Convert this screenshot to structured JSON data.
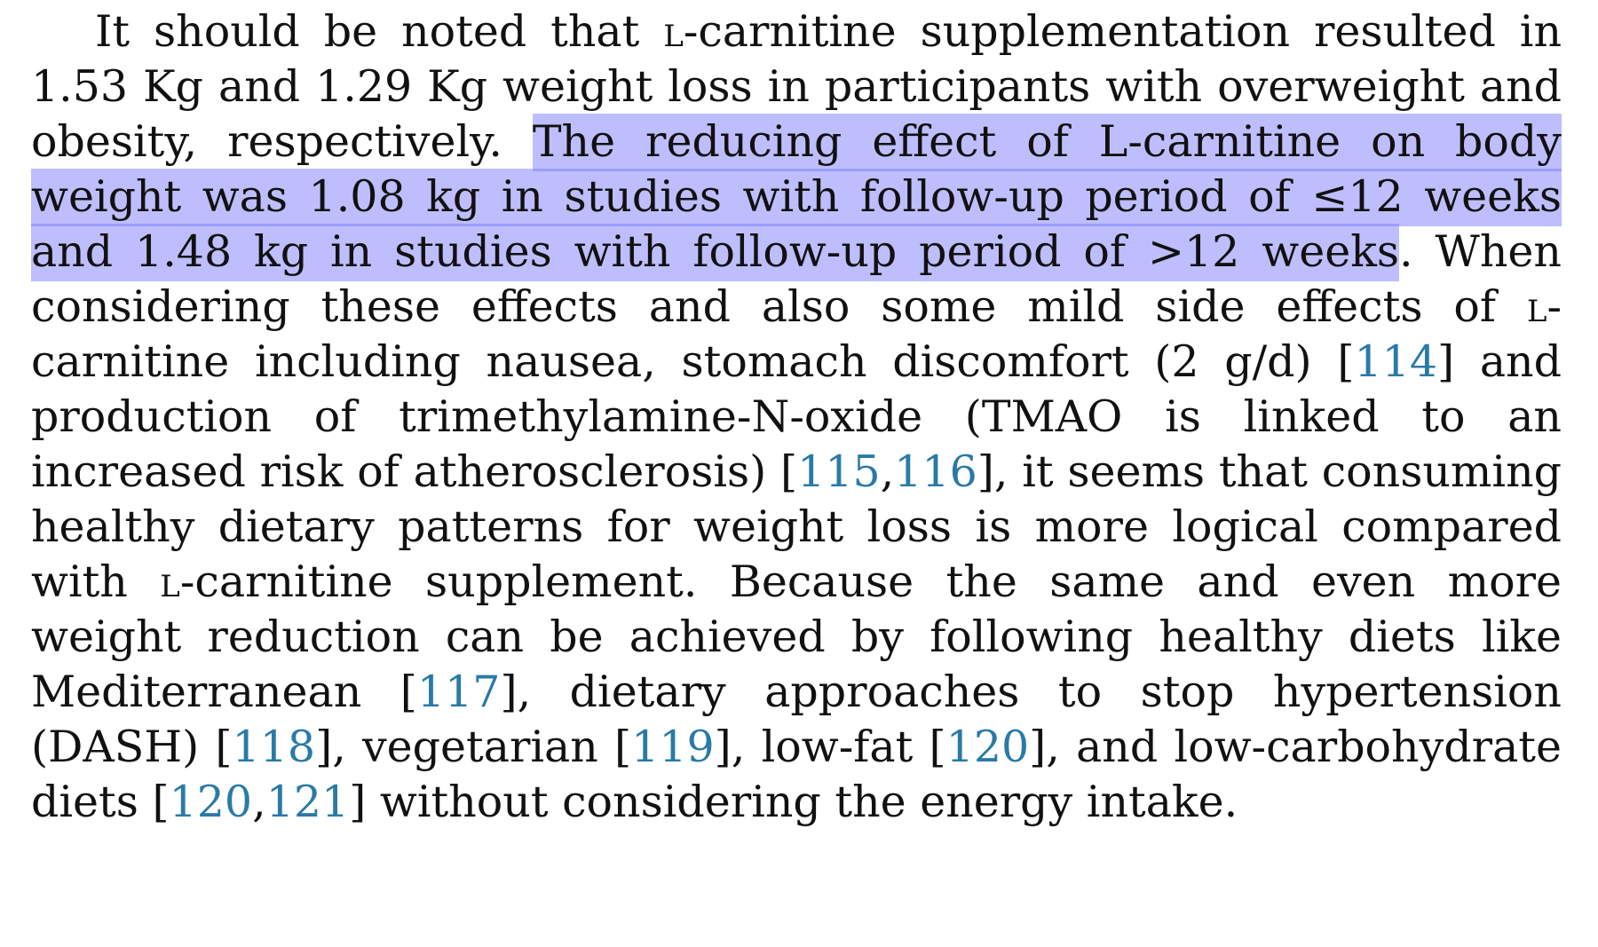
{
  "paragraph": {
    "lines": [
      {
        "t1": "It should be noted that ",
        "t2": "l",
        "t3": "-carnitine supplementation resulted in"
      },
      {
        "text": "1.53 Kg and 1.29 Kg weight loss in participants with overweight and"
      },
      {
        "plain": "obesity, respectively. ",
        "highlight": "The reducing effect of L-carnitine on body"
      },
      {
        "highlight": "weight was 1.08 kg in studies with follow-up period of ≤12 weeks"
      },
      {
        "highlight": "and 1.48 kg in studies with follow-up period of >12 weeks",
        "plain": ". When"
      },
      {
        "t1": "considering these effects and also some mild side effects of ",
        "t2": "l",
        "t3": "-"
      },
      {
        "pre": "carnitine including nausea, stomach discomfort (2 g/d) [",
        "ref1": "114",
        "post": "] and"
      },
      {
        "text": "production of trimethylamine-N-oxide (TMAO is linked to an"
      },
      {
        "pre": "increased risk of atherosclerosis) [",
        "ref1": "115",
        "sep": ",",
        "ref2": "116",
        "post": "], it seems that consuming"
      },
      {
        "text": "healthy dietary patterns for weight loss is more logical compared"
      },
      {
        "t1": "with ",
        "t2": "l",
        "t3": "-carnitine supplement. Because the same and even more"
      },
      {
        "text": "weight reduction can be achieved by following healthy diets like"
      },
      {
        "pre": "Mediterranean [",
        "ref1": "117",
        "post": "], dietary approaches to stop hypertension"
      },
      {
        "pre": "(DASH) [",
        "ref1": "118",
        "mid1": "], vegetarian [",
        "ref2": "119",
        "mid2": "], low-fat [",
        "ref3": "120",
        "post": "], and low-carbohydrate"
      },
      {
        "pre": "diets [",
        "ref1": "120",
        "sep": ",",
        "ref2": "121",
        "post": "] without considering the energy intake."
      }
    ]
  },
  "colors": {
    "highlight": "#9090ff",
    "reference_link": "#2a7aa6",
    "text": "#111111"
  }
}
